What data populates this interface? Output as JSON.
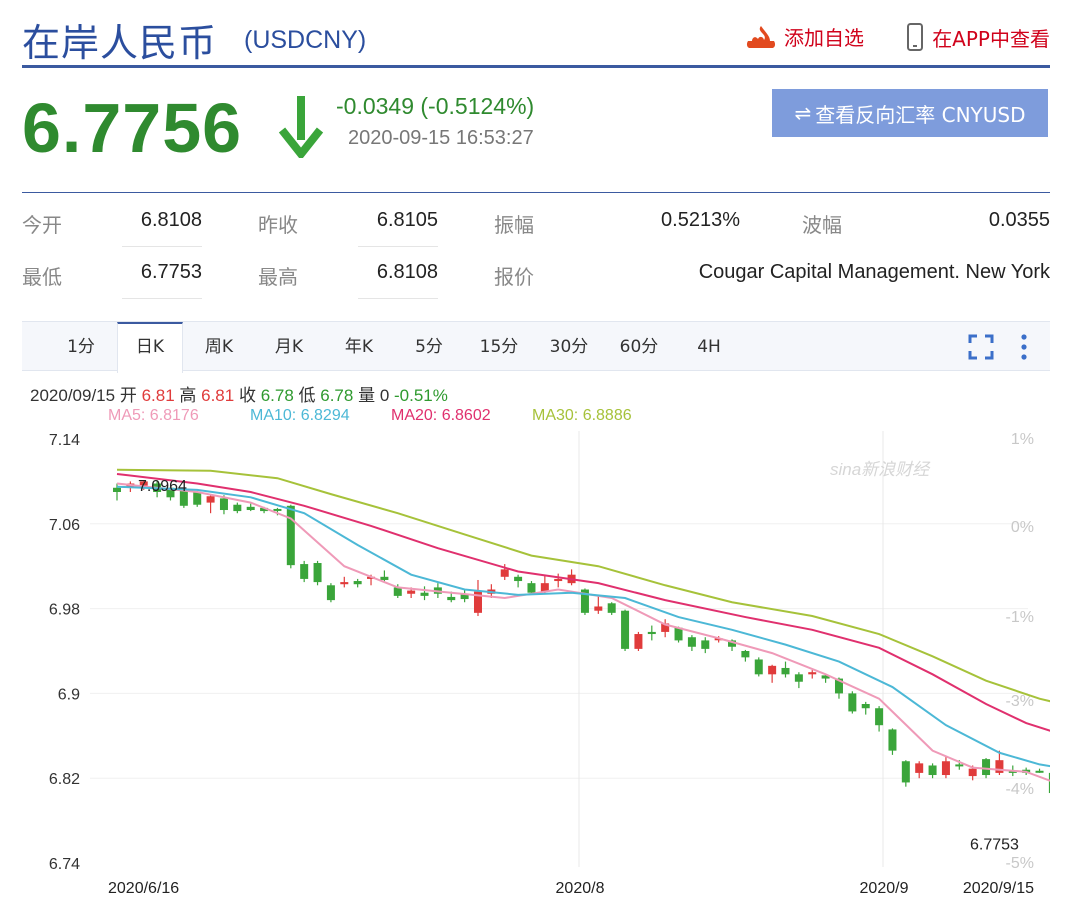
{
  "header": {
    "title": "在岸人民币",
    "code": "(USDCNY)",
    "add_favorite": "添加自选",
    "view_in_app": "在APP中查看"
  },
  "quote": {
    "price": "6.7756",
    "change": "-0.0349 (-0.5124%)",
    "timestamp": "2020-09-15 16:53:27",
    "reverse_button": "查看反向汇率 CNYUSD",
    "reverse_icon": "⇌"
  },
  "stats": {
    "open_label": "今开",
    "open": "6.8108",
    "prev_close_label": "昨收",
    "prev_close": "6.8105",
    "amplitude_label": "振幅",
    "amplitude": "0.5213%",
    "range_label": "波幅",
    "range": "0.0355",
    "low_label": "最低",
    "low": "6.7753",
    "high_label": "最高",
    "high": "6.8108",
    "quote_label": "报价",
    "quote_source": "Cougar Capital Management. New York"
  },
  "tabs": [
    "1分",
    "日K",
    "周K",
    "月K",
    "年K",
    "5分",
    "15分",
    "30分",
    "60分",
    "4H"
  ],
  "active_tab": "日K",
  "ohlc": {
    "date": "2020/09/15",
    "open_label": "开",
    "open": "6.81",
    "high_label": "高",
    "high": "6.81",
    "close_label": "收",
    "close": "6.78",
    "low_label": "低",
    "low": "6.78",
    "volume_label": "量",
    "volume": "0",
    "change_pct": "-0.51%"
  },
  "ma": {
    "ma5": "MA5: 6.8176",
    "ma10": "MA10: 6.8294",
    "ma20": "MA20: 6.8602",
    "ma30": "MA30: 6.8886"
  },
  "colors": {
    "up": "#e03b3b",
    "down": "#3aa53a",
    "ma5": "#ef9ab8",
    "ma10": "#4cb8d6",
    "ma20": "#e0306e",
    "ma30": "#a6c23a",
    "brand": "#2b4e9e"
  },
  "watermark": "sina新浪财经",
  "chart_data": {
    "type": "candlestick",
    "y_ticks": [
      "7.14",
      "7.06",
      "6.98",
      "6.9",
      "6.82",
      "6.74"
    ],
    "y_range": [
      6.74,
      7.14
    ],
    "pct_ticks": [
      "1%",
      "0%",
      "-1%",
      "-3%",
      "-4%",
      "-5%"
    ],
    "x_labels": [
      "2020/6/16",
      "2020/8",
      "2020/9",
      "2020/9/15"
    ],
    "max_label": "7.0964",
    "min_label": "6.7753",
    "candles": [
      [
        7.094,
        7.09,
        7.098,
        7.082
      ],
      [
        7.094,
        7.098,
        7.1,
        7.09
      ],
      [
        7.096,
        7.1,
        7.101,
        7.092
      ],
      [
        7.098,
        7.09,
        7.101,
        7.085
      ],
      [
        7.094,
        7.085,
        7.095,
        7.082
      ],
      [
        7.092,
        7.077,
        7.093,
        7.075
      ],
      [
        7.09,
        7.078,
        7.091,
        7.076
      ],
      [
        7.08,
        7.086,
        7.088,
        7.07
      ],
      [
        7.084,
        7.073,
        7.087,
        7.069
      ],
      [
        7.078,
        7.072,
        7.08,
        7.07
      ],
      [
        7.076,
        7.073,
        7.079,
        7.072
      ],
      [
        7.075,
        7.072,
        7.076,
        7.07
      ],
      [
        7.074,
        7.073,
        7.075,
        7.068
      ],
      [
        7.077,
        7.021,
        7.078,
        7.018
      ],
      [
        7.022,
        7.008,
        7.025,
        7.005
      ],
      [
        7.023,
        7.005,
        7.025,
        7.002
      ],
      [
        7.002,
        6.988,
        7.004,
        6.986
      ],
      [
        7.003,
        7.005,
        7.01,
        7.0
      ],
      [
        7.006,
        7.003,
        7.008,
        7.0
      ],
      [
        7.008,
        7.01,
        7.012,
        7.002
      ],
      [
        7.01,
        7.007,
        7.016,
        7.005
      ],
      [
        7.0,
        6.992,
        7.003,
        6.99
      ],
      [
        6.994,
        6.997,
        7.0,
        6.99
      ],
      [
        6.995,
        6.992,
        7.001,
        6.988
      ],
      [
        7.0,
        6.994,
        7.004,
        6.99
      ],
      [
        6.991,
        6.988,
        6.996,
        6.986
      ],
      [
        6.994,
        6.989,
        6.998,
        6.986
      ],
      [
        6.976,
        6.996,
        7.007,
        6.973
      ],
      [
        6.994,
        6.998,
        7.003,
        6.99
      ],
      [
        7.01,
        7.017,
        7.022,
        7.007
      ],
      [
        7.01,
        7.006,
        7.012,
        7.0
      ],
      [
        7.004,
        6.995,
        7.006,
        6.993
      ],
      [
        6.996,
        7.004,
        7.011,
        6.994
      ],
      [
        7.006,
        7.008,
        7.013,
        7.0
      ],
      [
        7.004,
        7.012,
        7.017,
        7.002
      ],
      [
        6.998,
        6.976,
        6.999,
        6.974
      ],
      [
        6.978,
        6.982,
        6.992,
        6.975
      ],
      [
        6.985,
        6.976,
        6.986,
        6.974
      ],
      [
        6.978,
        6.942,
        6.979,
        6.94
      ],
      [
        6.942,
        6.956,
        6.958,
        6.94
      ],
      [
        6.958,
        6.956,
        6.964,
        6.95
      ],
      [
        6.958,
        6.966,
        6.97,
        6.953
      ],
      [
        6.962,
        6.95,
        6.963,
        6.948
      ],
      [
        6.953,
        6.944,
        6.955,
        6.94
      ],
      [
        6.95,
        6.942,
        6.953,
        6.938
      ],
      [
        6.952,
        6.952,
        6.954,
        6.948
      ],
      [
        6.95,
        6.944,
        6.951,
        6.94
      ],
      [
        6.94,
        6.934,
        6.941,
        6.93
      ],
      [
        6.932,
        6.918,
        6.934,
        6.916
      ],
      [
        6.918,
        6.926,
        6.927,
        6.91
      ],
      [
        6.924,
        6.918,
        6.93,
        6.915
      ],
      [
        6.918,
        6.911,
        6.92,
        6.905
      ],
      [
        6.918,
        6.92,
        6.922,
        6.914
      ],
      [
        6.917,
        6.914,
        6.918,
        6.91
      ],
      [
        6.914,
        6.9,
        6.915,
        6.895
      ],
      [
        6.9,
        6.883,
        6.902,
        6.881
      ],
      [
        6.89,
        6.886,
        6.892,
        6.88
      ],
      [
        6.886,
        6.87,
        6.888,
        6.864
      ],
      [
        6.866,
        6.846,
        6.867,
        6.842
      ],
      [
        6.836,
        6.816,
        6.837,
        6.812
      ],
      [
        6.825,
        6.834,
        6.836,
        6.82
      ],
      [
        6.832,
        6.823,
        6.834,
        6.82
      ],
      [
        6.823,
        6.836,
        6.84,
        6.82
      ],
      [
        6.833,
        6.832,
        6.837,
        6.828
      ],
      [
        6.822,
        6.829,
        6.832,
        6.818
      ],
      [
        6.838,
        6.823,
        6.839,
        6.82
      ],
      [
        6.825,
        6.837,
        6.846,
        6.823
      ],
      [
        6.827,
        6.825,
        6.832,
        6.822
      ],
      [
        6.828,
        6.825,
        6.83,
        6.823
      ],
      [
        6.827,
        6.826,
        6.829,
        6.825
      ],
      [
        6.825,
        6.806,
        6.826,
        6.804
      ],
      [
        6.81,
        6.775,
        6.811,
        6.773
      ]
    ],
    "ma_series": {
      "MA5": [
        [
          0,
          7.098
        ],
        [
          6,
          7.09
        ],
        [
          10,
          7.08
        ],
        [
          13,
          7.065
        ],
        [
          17,
          7.02
        ],
        [
          21,
          7.0
        ],
        [
          25,
          6.995
        ],
        [
          29,
          6.99
        ],
        [
          33,
          6.998
        ],
        [
          37,
          6.99
        ],
        [
          41,
          6.965
        ],
        [
          45,
          6.952
        ],
        [
          49,
          6.938
        ],
        [
          53,
          6.918
        ],
        [
          57,
          6.895
        ],
        [
          61,
          6.846
        ],
        [
          64,
          6.83
        ],
        [
          68,
          6.826
        ],
        [
          71,
          6.812
        ]
      ],
      "MA10": [
        [
          0,
          7.095
        ],
        [
          6,
          7.092
        ],
        [
          10,
          7.085
        ],
        [
          14,
          7.07
        ],
        [
          18,
          7.04
        ],
        [
          22,
          7.012
        ],
        [
          26,
          6.998
        ],
        [
          30,
          6.993
        ],
        [
          34,
          6.995
        ],
        [
          38,
          6.99
        ],
        [
          42,
          6.972
        ],
        [
          46,
          6.96
        ],
        [
          50,
          6.946
        ],
        [
          54,
          6.93
        ],
        [
          58,
          6.906
        ],
        [
          62,
          6.87
        ],
        [
          66,
          6.844
        ],
        [
          69,
          6.833
        ],
        [
          71,
          6.829
        ]
      ],
      "MA20": [
        [
          0,
          7.107
        ],
        [
          6,
          7.098
        ],
        [
          10,
          7.09
        ],
        [
          14,
          7.077
        ],
        [
          19,
          7.058
        ],
        [
          24,
          7.037
        ],
        [
          30,
          7.015
        ],
        [
          36,
          7.004
        ],
        [
          41,
          6.988
        ],
        [
          47,
          6.972
        ],
        [
          52,
          6.96
        ],
        [
          57,
          6.943
        ],
        [
          61,
          6.918
        ],
        [
          65,
          6.89
        ],
        [
          68,
          6.872
        ],
        [
          71,
          6.86
        ]
      ],
      "MA30": [
        [
          0,
          7.111
        ],
        [
          7,
          7.11
        ],
        [
          12,
          7.103
        ],
        [
          16,
          7.088
        ],
        [
          21,
          7.07
        ],
        [
          26,
          7.05
        ],
        [
          31,
          7.03
        ],
        [
          36,
          7.02
        ],
        [
          41,
          7.002
        ],
        [
          46,
          6.986
        ],
        [
          52,
          6.973
        ],
        [
          57,
          6.956
        ],
        [
          61,
          6.935
        ],
        [
          65,
          6.912
        ],
        [
          69,
          6.895
        ],
        [
          71,
          6.889
        ]
      ]
    }
  }
}
